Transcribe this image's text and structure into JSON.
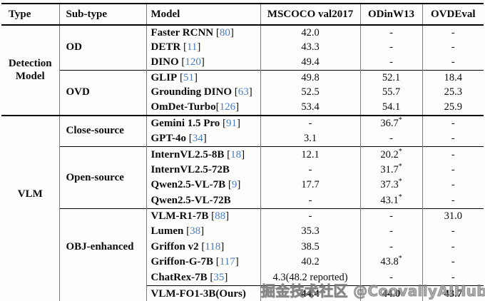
{
  "header": {
    "columns": [
      "Type",
      "Sub-type",
      "Model",
      "MSCOCO val2017",
      "ODinW13",
      "OVDEval"
    ]
  },
  "punct": {
    "cite_open": "[",
    "cite_close": "]",
    "sup_marker": "*"
  },
  "colors": {
    "citation_blue": "#4a7dbf",
    "rule_black": "#000000",
    "column_separator_gray": "#7d7d7d",
    "watermark_gray": "#969696"
  },
  "groups": [
    {
      "type": "Detection Model",
      "section_divider": false,
      "subgroups": [
        {
          "subtype": "OD",
          "divider": "none",
          "rows": [
            {
              "model": "Faster RCNN",
              "cite": "80",
              "cite_space": true,
              "values": [
                "42.0",
                "-",
                "-"
              ]
            },
            {
              "model": "DETR",
              "cite": "11",
              "cite_space": true,
              "values": [
                "43.3",
                "-",
                "-"
              ]
            },
            {
              "model": "DINO",
              "cite": "120",
              "cite_space": true,
              "values": [
                "49.4",
                "-",
                "-"
              ]
            }
          ]
        },
        {
          "subtype": "OVD",
          "divider": "from_subtype",
          "rows": [
            {
              "model": "GLIP",
              "cite": "51",
              "cite_space": true,
              "values": [
                "49.8",
                "52.1",
                "18.4"
              ]
            },
            {
              "model": "Grounding DINO",
              "cite": "63",
              "cite_space": true,
              "values": [
                "52.5",
                "55.7",
                "25.3"
              ]
            },
            {
              "model": "OmDet-Turbo",
              "cite": "126",
              "cite_space": false,
              "values": [
                "53.4",
                "54.1",
                "25.9"
              ]
            }
          ]
        }
      ]
    },
    {
      "type": "VLM",
      "section_divider": true,
      "subgroups": [
        {
          "subtype": "Close-source",
          "divider": "none",
          "rows": [
            {
              "model": "Gemini 1.5 Pro",
              "cite": "91",
              "cite_space": true,
              "values": [
                "-",
                "36.7*",
                "-"
              ]
            },
            {
              "model": "GPT-4o",
              "cite": "34",
              "cite_space": true,
              "values": [
                "3.1",
                "-",
                "-"
              ]
            }
          ]
        },
        {
          "subtype": "Open-source",
          "divider": "from_subtype",
          "rows": [
            {
              "model": "InternVL2.5-8B",
              "cite": "18",
              "cite_space": true,
              "values": [
                "12.1",
                "20.2*",
                "-"
              ]
            },
            {
              "model": "InternVL2.5-72B",
              "cite": null,
              "cite_space": false,
              "values": [
                "-",
                "31.7*",
                "-"
              ]
            },
            {
              "model": "Qwen2.5-VL-7B",
              "cite": "9",
              "cite_space": true,
              "values": [
                "17.7",
                "37.3*",
                "-"
              ]
            },
            {
              "model": "Qwen2.5-VL-72B",
              "cite": null,
              "cite_space": false,
              "values": [
                "-",
                "43.1*",
                "-"
              ]
            }
          ]
        },
        {
          "subtype": "OBJ-enhanced",
          "divider": "from_subtype",
          "rows": [
            {
              "model": "VLM-R1-7B",
              "cite": "88",
              "cite_space": true,
              "values": [
                "-",
                "-",
                "31.0"
              ]
            },
            {
              "model": "Lumen",
              "cite": "38",
              "cite_space": true,
              "values": [
                "35.3",
                "-",
                "-"
              ]
            },
            {
              "model": "Griffon v2",
              "cite": "118",
              "cite_space": true,
              "values": [
                "38.5",
                "-",
                "-"
              ]
            },
            {
              "model": "Griffon-G-7B",
              "cite": "117",
              "cite_space": true,
              "values": [
                "40.2",
                "43.8*",
                "-"
              ]
            },
            {
              "model": "ChatRex-7B",
              "cite": "35",
              "cite_space": true,
              "values": [
                "4.3(48.2 reported)",
                "-",
                "-"
              ]
            }
          ]
        },
        {
          "subtype": "",
          "divider": "from_model",
          "rows": [
            {
              "model": "VLM-FO1-3B(Ours)",
              "cite": null,
              "cite_space": false,
              "bold_values": true,
              "values": [
                "44.4",
                "44.0",
                "43.7"
              ]
            }
          ]
        }
      ]
    }
  ],
  "watermark": {
    "text": "掘金技术社区 @CoovallyAIHub"
  }
}
